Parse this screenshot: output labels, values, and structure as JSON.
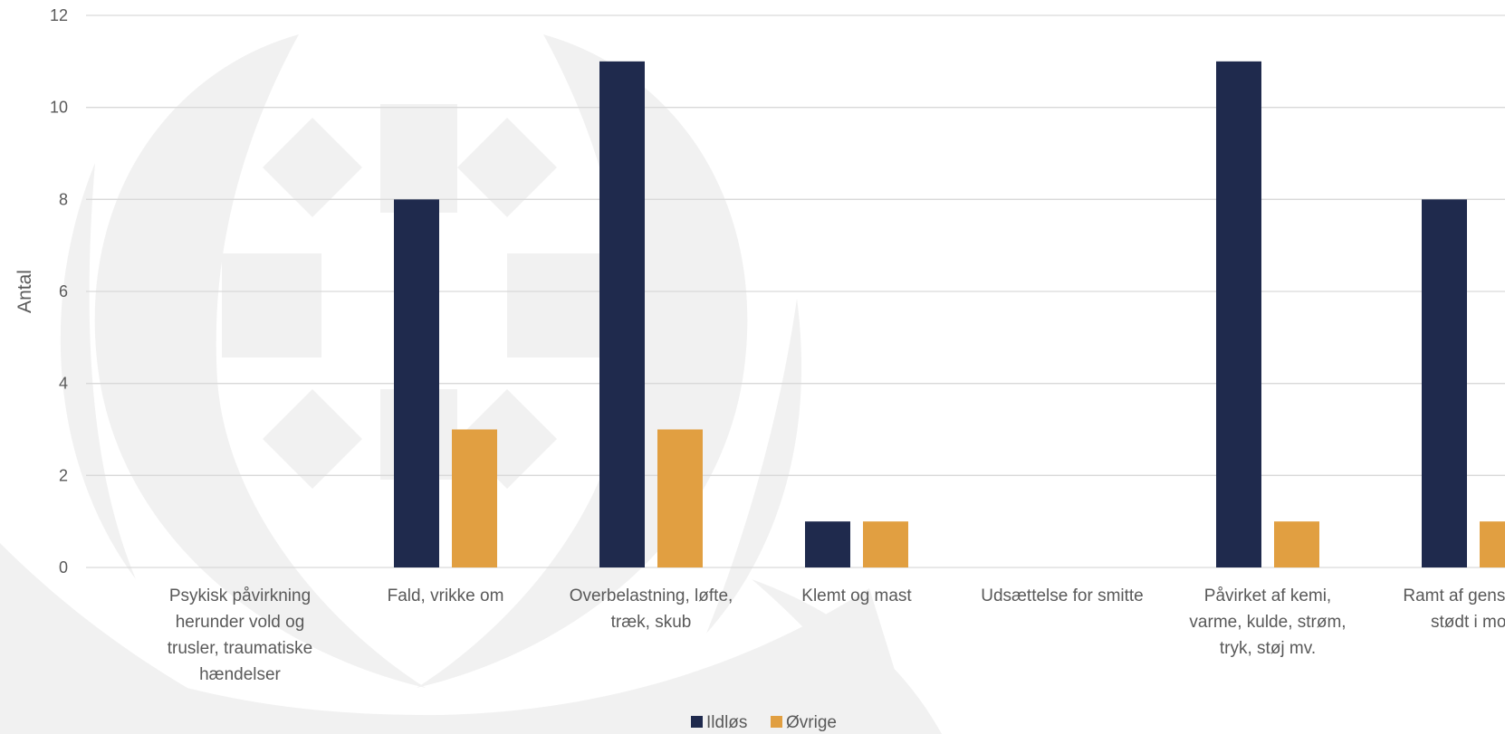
{
  "chart_data": {
    "type": "bar",
    "ylabel": "Antal",
    "xlabel": "",
    "ylim": [
      0,
      12
    ],
    "yticks": [
      0,
      2,
      4,
      6,
      8,
      10,
      12
    ],
    "grid": true,
    "legend_position": "bottom",
    "categories": [
      [
        "Psykisk påvirkning",
        "herunder vold og",
        "trusler, traumatiske",
        "hændelser"
      ],
      [
        "Fald, vrikke om"
      ],
      [
        "Overbelastning, løfte,",
        "træk, skub"
      ],
      [
        "Klemt og mast"
      ],
      [
        "Udsættelse for smitte"
      ],
      [
        "Påvirket af kemi,",
        "varme, kulde, strøm,",
        "tryk, støj mv."
      ],
      [
        "Ramt af genstand,",
        "stødt i mod"
      ]
    ],
    "series": [
      {
        "name": "Ildløs",
        "color": "#1F2A4D",
        "values": [
          0,
          8,
          11,
          1,
          0,
          11,
          8
        ]
      },
      {
        "name": "Øvrige",
        "color": "#E19F41",
        "values": [
          0,
          3,
          3,
          1,
          0,
          1,
          1
        ]
      }
    ],
    "watermark": "emblem"
  }
}
